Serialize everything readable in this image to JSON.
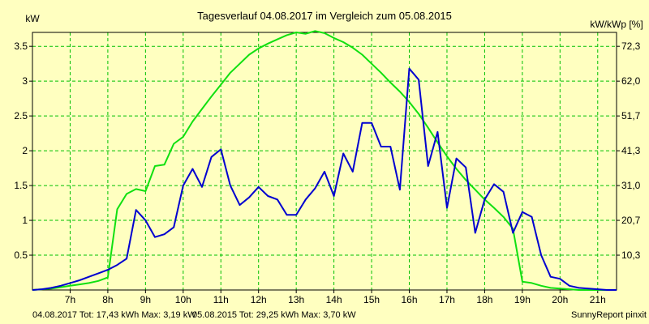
{
  "chart_data": {
    "type": "line",
    "title": "Tagesverlauf 04.08.2017 im Vergleich zum 05.08.2015",
    "ylabel_left": "kW",
    "ylabel_right": "kW/kWp [%]",
    "ylim": [
      0,
      3.7
    ],
    "xlim": [
      6.0,
      21.5
    ],
    "x_ticks": [
      7,
      8,
      9,
      10,
      11,
      12,
      13,
      14,
      15,
      16,
      17,
      18,
      19,
      20,
      21
    ],
    "x_tick_labels": [
      "7h",
      "8h",
      "9h",
      "10h",
      "11h",
      "12h",
      "13h",
      "14h",
      "15h",
      "16h",
      "17h",
      "18h",
      "19h",
      "20h",
      "21h"
    ],
    "y_ticks_left": [
      0.5,
      1,
      1.5,
      2,
      2.5,
      3,
      3.5
    ],
    "y_tick_labels_left": [
      "0.5",
      "1",
      "1.5",
      "2",
      "2.5",
      "3",
      "3.5"
    ],
    "y_ticks_right": [
      0.5,
      1.0,
      1.5,
      2.0,
      2.5,
      3.0,
      3.5
    ],
    "y_tick_labels_right": [
      "10,3",
      "20,7",
      "31,0",
      "41,3",
      "51,7",
      "62,0",
      "72,3"
    ],
    "grid": true,
    "colors": {
      "background": "#ffffc0",
      "grid": "#00c000",
      "series_2017": "#0000d0",
      "series_2015": "#10e010",
      "footer_2017": "#0000d0",
      "footer_2015": "#0000d0"
    },
    "series": [
      {
        "name": "04.08.2017",
        "color": "#0000d0",
        "x": [
          6.0,
          6.25,
          6.5,
          6.75,
          7.0,
          7.25,
          7.5,
          7.75,
          8.0,
          8.25,
          8.5,
          8.75,
          9.0,
          9.25,
          9.5,
          9.75,
          10.0,
          10.25,
          10.5,
          10.75,
          11.0,
          11.25,
          11.5,
          11.75,
          12.0,
          12.25,
          12.5,
          12.75,
          13.0,
          13.25,
          13.5,
          13.75,
          14.0,
          14.25,
          14.5,
          14.75,
          15.0,
          15.25,
          15.5,
          15.75,
          16.0,
          16.25,
          16.5,
          16.75,
          17.0,
          17.25,
          17.5,
          17.75,
          18.0,
          18.25,
          18.5,
          18.75,
          19.0,
          19.25,
          19.5,
          19.75,
          20.0,
          20.25,
          20.5,
          20.75,
          21.0,
          21.25,
          21.5
        ],
        "y": [
          0.0,
          0.01,
          0.03,
          0.06,
          0.1,
          0.14,
          0.19,
          0.24,
          0.29,
          0.36,
          0.45,
          1.15,
          1.0,
          0.76,
          0.8,
          0.9,
          1.5,
          1.74,
          1.48,
          1.91,
          2.02,
          1.5,
          1.22,
          1.33,
          1.48,
          1.35,
          1.3,
          1.08,
          1.08,
          1.3,
          1.46,
          1.7,
          1.35,
          1.96,
          1.7,
          2.4,
          2.4,
          2.06,
          2.06,
          1.44,
          3.18,
          3.02,
          1.78,
          2.27,
          1.18,
          1.89,
          1.76,
          0.82,
          1.3,
          1.52,
          1.41,
          0.82,
          1.12,
          1.05,
          0.5,
          0.19,
          0.16,
          0.06,
          0.03,
          0.02,
          0.01,
          0.0,
          0.0
        ]
      },
      {
        "name": "05.08.2015",
        "color": "#10e010",
        "x": [
          6.0,
          6.25,
          6.5,
          6.75,
          7.0,
          7.25,
          7.5,
          7.75,
          8.0,
          8.25,
          8.5,
          8.75,
          9.0,
          9.25,
          9.5,
          9.75,
          10.0,
          10.25,
          10.5,
          10.75,
          11.0,
          11.25,
          11.5,
          11.75,
          12.0,
          12.25,
          12.5,
          12.75,
          13.0,
          13.25,
          13.5,
          13.75,
          14.0,
          14.25,
          14.5,
          14.75,
          15.0,
          15.25,
          15.5,
          15.75,
          16.0,
          16.25,
          16.5,
          16.75,
          17.0,
          17.25,
          17.5,
          17.75,
          18.0,
          18.25,
          18.5,
          18.75,
          19.0,
          19.25,
          19.5,
          19.75,
          20.0,
          20.25,
          20.5,
          20.75,
          21.0,
          21.25,
          21.5
        ],
        "y": [
          0.0,
          0.01,
          0.02,
          0.04,
          0.06,
          0.08,
          0.1,
          0.13,
          0.18,
          1.16,
          1.38,
          1.45,
          1.42,
          1.78,
          1.8,
          2.1,
          2.2,
          2.42,
          2.6,
          2.78,
          2.95,
          3.12,
          3.25,
          3.38,
          3.47,
          3.54,
          3.6,
          3.66,
          3.7,
          3.68,
          3.72,
          3.69,
          3.62,
          3.56,
          3.48,
          3.38,
          3.25,
          3.12,
          2.98,
          2.85,
          2.7,
          2.53,
          2.33,
          2.12,
          1.92,
          1.74,
          1.58,
          1.44,
          1.3,
          1.18,
          1.05,
          0.88,
          0.12,
          0.1,
          0.06,
          0.03,
          0.02,
          0.01,
          0.0,
          0.0,
          0.0,
          0.0,
          0.0
        ]
      }
    ],
    "footer": {
      "series_2017_summary": "04.08.2017 Tot: 17,43 kWh Max: 3,19 kW",
      "series_2015_summary": "05.08.2015 Tot: 29,25 kWh Max: 3,70 kW",
      "credit": "SunnyReport pinxit"
    }
  }
}
